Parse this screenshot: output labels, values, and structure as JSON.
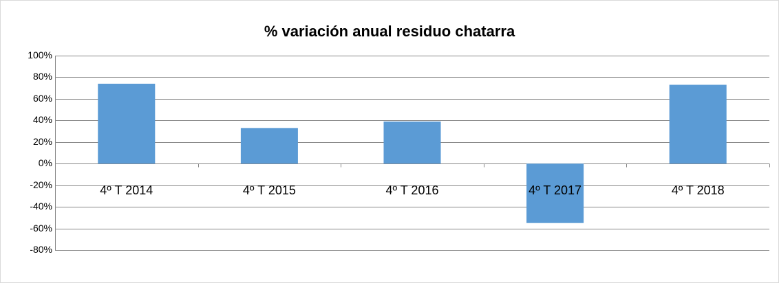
{
  "chart_data": {
    "type": "bar",
    "title": "% variación anual residuo chatarra",
    "categories": [
      "4º T 2014",
      "4º T 2015",
      "4º T 2016",
      "4º T 2017",
      "4º T 2018"
    ],
    "values": [
      74,
      33,
      39,
      -55,
      73
    ],
    "color": "#5b9bd5",
    "ylim": [
      -80,
      100
    ],
    "yticks": [
      {
        "value": -80,
        "label": "-80%"
      },
      {
        "value": -60,
        "label": "-60%"
      },
      {
        "value": -40,
        "label": "-40%"
      },
      {
        "value": -20,
        "label": "-20%"
      },
      {
        "value": 0,
        "label": "0%"
      },
      {
        "value": 20,
        "label": "20%"
      },
      {
        "value": 40,
        "label": "40%"
      },
      {
        "value": 60,
        "label": "60%"
      },
      {
        "value": 80,
        "label": "80%"
      },
      {
        "value": 100,
        "label": "100%"
      }
    ],
    "grid": true
  }
}
